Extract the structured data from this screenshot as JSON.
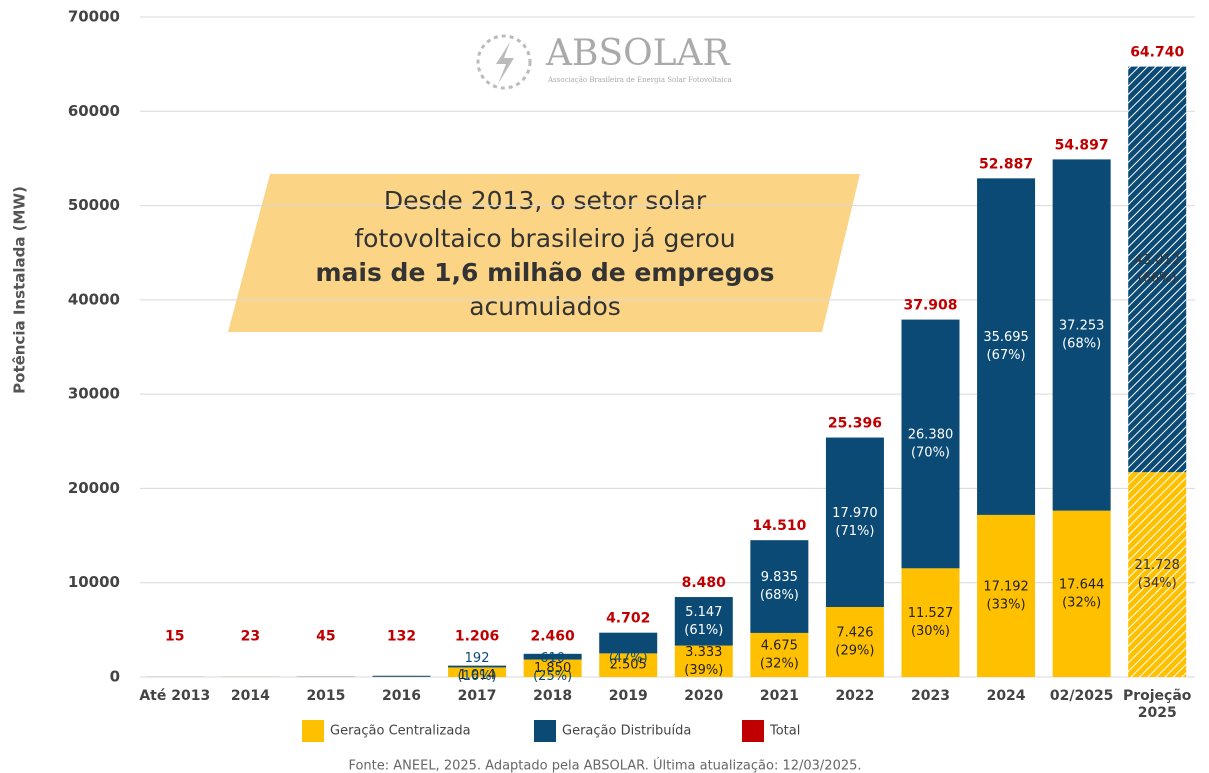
{
  "chart_data": {
    "type": "stacked_bar",
    "y_label": "Potência Instalada (MW)",
    "categories": [
      "Até 2013",
      "2014",
      "2015",
      "2016",
      "2017",
      "2018",
      "2019",
      "2020",
      "2021",
      "2022",
      "2023",
      "2024",
      "02/2025",
      "Projeção 2025"
    ],
    "hatched_categories": [
      "Projeção 2025"
    ],
    "series": [
      {
        "name": "Geração Centralizada",
        "color": "#ffc000",
        "label_color": "#222222",
        "values": [
          5,
          15,
          21,
          24,
          1014,
          1850,
          2505,
          3333,
          4675,
          7426,
          11527,
          17192,
          17644,
          21728
        ],
        "value_labels": [
          null,
          null,
          null,
          null,
          "1.014",
          "1.850",
          "2.505",
          "3.333",
          "4.675",
          "7.426",
          "11.527",
          "17.192",
          "17.644",
          "21.728"
        ],
        "shares": [
          null,
          null,
          null,
          null,
          null,
          null,
          null,
          39,
          32,
          29,
          30,
          33,
          32,
          34
        ],
        "share_labels": [
          null,
          null,
          null,
          null,
          null,
          null,
          null,
          "(39%)",
          "(32%)",
          "(29%)",
          "(30%)",
          "(33%)",
          "(32%)",
          "(34%)"
        ]
      },
      {
        "name": "Geração Distribuída",
        "color": "#0b4a75",
        "label_color": "#ffffff",
        "values": [
          10,
          8,
          24,
          108,
          192,
          610,
          2196,
          5147,
          9835,
          17970,
          26380,
          35695,
          37253,
          43012
        ],
        "value_labels": [
          null,
          null,
          null,
          null,
          "192",
          "610",
          "2.196",
          "5.147",
          "9.835",
          "17.970",
          "26.380",
          "35.695",
          "37.253",
          "43.012"
        ],
        "shares": [
          null,
          null,
          null,
          null,
          16,
          25,
          47,
          61,
          68,
          71,
          70,
          67,
          68,
          66
        ],
        "share_labels": [
          null,
          null,
          null,
          null,
          "(16%)",
          "(25%)",
          "(47%)",
          "(61%)",
          "(68%)",
          "(71%)",
          "(70%)",
          "(67%)",
          "(68%)",
          "(66%)"
        ]
      }
    ],
    "total": {
      "name": "Total",
      "color": "#c00000",
      "values": [
        15,
        23,
        45,
        132,
        1206,
        2460,
        4702,
        8480,
        14510,
        25396,
        37908,
        52887,
        54897,
        64740
      ],
      "value_labels": [
        "15",
        "23",
        "45",
        "132",
        "1.206",
        "2.460",
        "4.702",
        "8.480",
        "14.510",
        "25.396",
        "37.908",
        "52.887",
        "54.897",
        "64.740"
      ]
    },
    "ylim": [
      0,
      70000
    ],
    "yticks": [
      0,
      10000,
      20000,
      30000,
      40000,
      50000,
      60000,
      70000
    ],
    "grid": true,
    "callout": {
      "line1": "Desde 2013, o setor solar",
      "line2": "fotovoltaico brasileiro já gerou",
      "line3": "mais de 1,6 milhão de empregos",
      "line4": "acumulados"
    },
    "logo": {
      "name": "ABSOLAR",
      "subtitle": "Associação Brasileira de Energia Solar Fotovoltaica"
    },
    "source": "Fonte: ANEEL, 2025. Adaptado pela ABSOLAR. Última atualização: 12/03/2025."
  }
}
